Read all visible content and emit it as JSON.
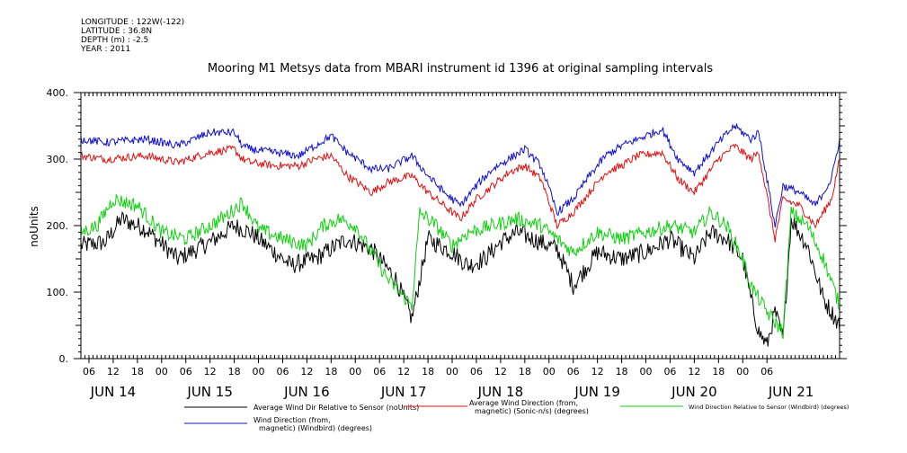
{
  "meta": {
    "longitude": "LONGITUDE : 122W(-122)",
    "latitude": "LATITUDE : 36.8N",
    "depth": "DEPTH (m) : -2.5",
    "year": "YEAR : 2011"
  },
  "chart_data": {
    "type": "line",
    "title": "Mooring M1 Metsys data from MBARI instrument id 1396 at original sampling intervals",
    "ylabel": "noUnits",
    "ylim": [
      0,
      400
    ],
    "y_ticks": [
      "0.",
      "100.",
      "200.",
      "300.",
      "400."
    ],
    "x_range_hours": [
      4,
      192
    ],
    "x_hour_ticks": [
      "06",
      "12",
      "18",
      "00",
      "06",
      "12",
      "18",
      "00",
      "06",
      "12",
      "18",
      "00",
      "06",
      "12",
      "18",
      "00",
      "06",
      "12",
      "18",
      "00",
      "06",
      "12",
      "18",
      "00",
      "06",
      "12",
      "18",
      "00",
      "06"
    ],
    "date_labels": [
      "JUN 14",
      "JUN 15",
      "JUN 16",
      "JUN 17",
      "JUN 18",
      "JUN 19",
      "JUN 20",
      "JUN 21"
    ],
    "series": [
      {
        "name": "Average Wind Dir Relative to Sensor (noUnits)",
        "color": "#000000",
        "noise": 14,
        "x": [
          4,
          10,
          14,
          20,
          28,
          36,
          42,
          46,
          52,
          56,
          62,
          70,
          76,
          82,
          86,
          90,
          96,
          100,
          104,
          108,
          112,
          116,
          122,
          126,
          132,
          138,
          144,
          150,
          156,
          160,
          164,
          168,
          170,
          172,
          174,
          176,
          178,
          180,
          184,
          188,
          192
        ],
        "values": [
          170,
          175,
          210,
          195,
          150,
          175,
          200,
          190,
          160,
          140,
          150,
          180,
          165,
          120,
          60,
          180,
          160,
          140,
          150,
          175,
          190,
          180,
          165,
          110,
          160,
          150,
          160,
          180,
          150,
          190,
          180,
          150,
          90,
          40,
          20,
          70,
          30,
          210,
          170,
          90,
          50
        ]
      },
      {
        "name": "Average Wind Direction (from, magnetic) (Sonic-n/s) (degrees)",
        "color": "#e01010",
        "noise": 6,
        "x": [
          4,
          10,
          20,
          28,
          36,
          42,
          44,
          46,
          52,
          58,
          62,
          66,
          70,
          76,
          80,
          86,
          90,
          94,
          98,
          102,
          106,
          110,
          114,
          118,
          122,
          126,
          130,
          134,
          138,
          142,
          148,
          152,
          156,
          162,
          166,
          170,
          172,
          176,
          178,
          182,
          186,
          190,
          192
        ],
        "values": [
          305,
          300,
          305,
          295,
          310,
          315,
          300,
          295,
          290,
          290,
          300,
          305,
          275,
          250,
          265,
          275,
          250,
          230,
          210,
          240,
          260,
          280,
          290,
          270,
          200,
          220,
          250,
          280,
          290,
          305,
          310,
          270,
          250,
          300,
          320,
          300,
          310,
          180,
          240,
          230,
          200,
          240,
          300
        ]
      },
      {
        "name": "Wind Direction Relative to Sensor (Windbird) (degrees)",
        "color": "#10d010",
        "noise": 11,
        "x": [
          4,
          8,
          12,
          18,
          24,
          30,
          36,
          40,
          44,
          48,
          54,
          60,
          64,
          68,
          72,
          76,
          80,
          86,
          88,
          92,
          96,
          100,
          106,
          112,
          118,
          122,
          126,
          132,
          138,
          144,
          150,
          156,
          160,
          164,
          168,
          170,
          174,
          178,
          180,
          184,
          188,
          192
        ],
        "values": [
          190,
          200,
          240,
          230,
          190,
          180,
          200,
          215,
          235,
          195,
          180,
          170,
          200,
          210,
          200,
          160,
          120,
          80,
          220,
          200,
          170,
          190,
          200,
          210,
          200,
          180,
          160,
          190,
          180,
          190,
          200,
          190,
          220,
          200,
          150,
          110,
          70,
          40,
          220,
          200,
          150,
          80
        ]
      },
      {
        "name": "Wind Direction (from, magnetic) (Windbird) (degrees)",
        "color": "#1010d0",
        "noise": 6,
        "x": [
          4,
          10,
          20,
          28,
          36,
          42,
          44,
          46,
          52,
          58,
          62,
          66,
          70,
          76,
          80,
          86,
          90,
          94,
          98,
          102,
          106,
          110,
          114,
          118,
          122,
          126,
          130,
          134,
          138,
          142,
          148,
          152,
          156,
          162,
          166,
          170,
          172,
          176,
          178,
          182,
          186,
          190,
          192
        ],
        "values": [
          330,
          325,
          330,
          320,
          340,
          340,
          320,
          315,
          310,
          305,
          320,
          335,
          310,
          285,
          285,
          305,
          275,
          250,
          230,
          260,
          285,
          300,
          315,
          290,
          220,
          240,
          275,
          305,
          320,
          330,
          345,
          300,
          280,
          325,
          350,
          330,
          340,
          200,
          260,
          250,
          230,
          270,
          330
        ]
      }
    ],
    "legend": [
      {
        "label": "Average Wind Dir Relative to Sensor (noUnits)",
        "color": "#000000"
      },
      {
        "label": "Average Wind Direction (from, magnetic) (Sonic-n/s) (degrees)",
        "color": "#e01010"
      },
      {
        "label": "Wind Direction Relative to Sensor (Windbird) (degrees)",
        "color": "#10d010"
      },
      {
        "label": "Wind Direction (from, magnetic) (Windbird) (degrees)",
        "color": "#1010d0"
      }
    ]
  }
}
